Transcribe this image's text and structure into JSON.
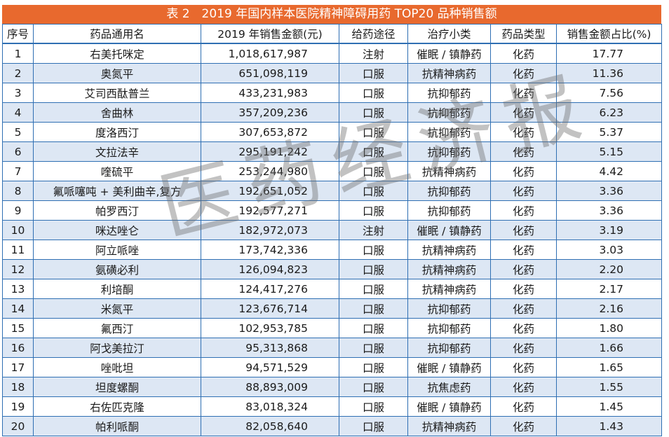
{
  "table": {
    "title": "表 2　2019 年国内样本医院精神障碍用药 TOP20 品种销售额",
    "headers": [
      "序号",
      "药品通用名",
      "2019 年销售金额(元)",
      "给药途径",
      "治疗小类",
      "药品类型",
      "销售金额占比(%)"
    ],
    "rows": [
      [
        "1",
        "右美托咪定",
        "1,018,617,987",
        "注射",
        "催眠 / 镇静药",
        "化药",
        "17.77"
      ],
      [
        "2",
        "奥氮平",
        "651,098,119",
        "口服",
        "抗精神病药",
        "化药",
        "11.36"
      ],
      [
        "3",
        "艾司西酞普兰",
        "433,231,983",
        "口服",
        "抗抑郁药",
        "化药",
        "7.56"
      ],
      [
        "4",
        "舍曲林",
        "357,209,236",
        "口服",
        "抗抑郁药",
        "化药",
        "6.23"
      ],
      [
        "5",
        "度洛西汀",
        "307,653,872",
        "口服",
        "抗抑郁药",
        "化药",
        "5.37"
      ],
      [
        "6",
        "文拉法辛",
        "295,191,242",
        "口服",
        "抗抑郁药",
        "化药",
        "5.15"
      ],
      [
        "7",
        "喹硫平",
        "253,244,980",
        "口服",
        "抗精神病药",
        "化药",
        "4.42"
      ],
      [
        "8",
        "氟哌噻吨 + 美利曲辛,复方",
        "192,651,052",
        "口服",
        "抗抑郁药",
        "化药",
        "3.36"
      ],
      [
        "9",
        "帕罗西汀",
        "192,577,271",
        "口服",
        "抗抑郁药",
        "化药",
        "3.36"
      ],
      [
        "10",
        "咪达唑仑",
        "182,972,073",
        "注射",
        "催眠 / 镇静药",
        "化药",
        "3.19"
      ],
      [
        "11",
        "阿立哌唑",
        "173,742,336",
        "口服",
        "抗精神病药",
        "化药",
        "3.03"
      ],
      [
        "12",
        "氨磺必利",
        "126,094,823",
        "口服",
        "抗精神病药",
        "化药",
        "2.20"
      ],
      [
        "13",
        "利培酮",
        "124,417,276",
        "口服",
        "抗精神病药",
        "化药",
        "2.17"
      ],
      [
        "14",
        "米氮平",
        "123,676,714",
        "口服",
        "抗抑郁药",
        "化药",
        "2.16"
      ],
      [
        "15",
        "氟西汀",
        "102,953,785",
        "口服",
        "抗抑郁药",
        "化药",
        "1.80"
      ],
      [
        "16",
        "阿戈美拉汀",
        "95,313,868",
        "口服",
        "抗抑郁药",
        "化药",
        "1.66"
      ],
      [
        "17",
        "唑吡坦",
        "94,571,529",
        "口服",
        "催眠 / 镇静药",
        "化药",
        "1.65"
      ],
      [
        "18",
        "坦度螺酮",
        "88,893,009",
        "口服",
        "抗焦虑药",
        "化药",
        "1.55"
      ],
      [
        "19",
        "右佐匹克隆",
        "83,018,324",
        "口服",
        "催眠 / 镇静药",
        "化药",
        "1.45"
      ],
      [
        "20",
        "帕利哌酮",
        "82,058,640",
        "口服",
        "抗精神病药",
        "化药",
        "1.43"
      ]
    ]
  },
  "watermark": "医药经济报",
  "colors": {
    "title_bg": "#e8692e",
    "border": "#2f6fb3",
    "stripe": "#dde7f4"
  }
}
